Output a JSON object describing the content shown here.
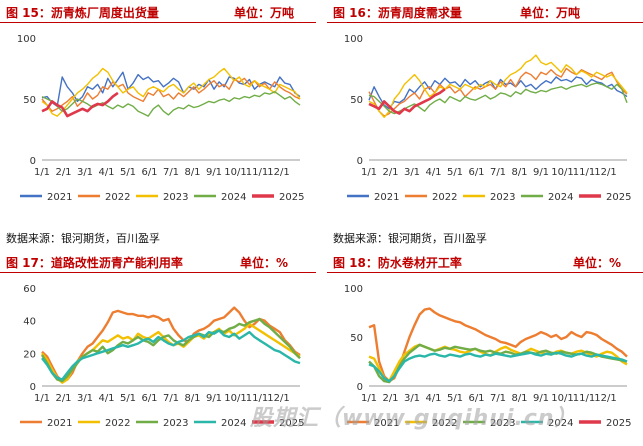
{
  "colors": {
    "2021": "#4472c4",
    "2022": "#ed7d31",
    "2023": "#f2c000",
    "2024": "#70ad47",
    "2025": "#e0384b",
    "2024_alt": "#2ab7a9",
    "title": "#c00000"
  },
  "source_text": "数据来源：银河期货，百川盈孚",
  "watermark": "股期汇（www.guqihui.cn）",
  "chart_data": [
    {
      "type": "line",
      "title": "图 15：沥青炼厂周度出货量",
      "unit": "单位：万吨",
      "x_ticks": [
        "1/1",
        "2/1",
        "3/1",
        "4/1",
        "5/1",
        "6/1",
        "7/1",
        "8/1",
        "9/1",
        "10/1",
        "11/1",
        "12/1"
      ],
      "y_ticks": [
        0,
        50,
        100
      ],
      "ylim": [
        0,
        100
      ],
      "legend": [
        "2021",
        "2022",
        "2023",
        "2024",
        "2025"
      ],
      "series": [
        {
          "name": "2021",
          "color": "#4472c4",
          "values": [
            51,
            52,
            47,
            44,
            68,
            60,
            55,
            48,
            52,
            60,
            58,
            62,
            55,
            67,
            60,
            66,
            72,
            58,
            63,
            70,
            66,
            68,
            64,
            65,
            60,
            63,
            67,
            64,
            55,
            60,
            58,
            62,
            60,
            66,
            58,
            64,
            60,
            68,
            67,
            63,
            62,
            66,
            58,
            62,
            64,
            62,
            60,
            68,
            63,
            62,
            55,
            52
          ]
        },
        {
          "name": "2022",
          "color": "#ed7d31",
          "values": [
            50,
            45,
            40,
            42,
            45,
            48,
            52,
            44,
            48,
            55,
            50,
            53,
            60,
            58,
            64,
            60,
            62,
            55,
            52,
            50,
            48,
            55,
            53,
            58,
            52,
            54,
            50,
            55,
            52,
            56,
            60,
            55,
            58,
            62,
            65,
            60,
            62,
            58,
            66,
            64,
            67,
            62,
            65,
            60,
            63,
            58,
            64,
            60,
            57,
            55,
            52,
            50
          ]
        },
        {
          "name": "2023",
          "color": "#f2c000",
          "values": [
            48,
            45,
            38,
            36,
            40,
            45,
            50,
            55,
            58,
            62,
            67,
            70,
            75,
            72,
            65,
            60,
            55,
            58,
            60,
            55,
            52,
            58,
            60,
            58,
            56,
            60,
            62,
            58,
            55,
            60,
            63,
            58,
            62,
            66,
            68,
            72,
            75,
            70,
            65,
            68,
            62,
            60,
            65,
            62,
            60,
            58,
            55,
            62,
            60,
            58,
            56,
            50
          ]
        },
        {
          "name": "2024",
          "color": "#70ad47",
          "values": [
            52,
            50,
            48,
            44,
            40,
            42,
            46,
            50,
            48,
            46,
            43,
            45,
            47,
            44,
            42,
            45,
            43,
            46,
            44,
            40,
            38,
            36,
            42,
            45,
            40,
            37,
            41,
            43,
            42,
            45,
            43,
            44,
            46,
            48,
            47,
            49,
            50,
            48,
            51,
            50,
            52,
            51,
            53,
            52,
            55,
            54,
            56,
            53,
            50,
            52,
            48,
            45
          ]
        },
        {
          "name": "2025",
          "color": "#e0384b",
          "values": [
            40,
            42,
            48,
            45,
            43,
            36,
            38,
            40,
            42,
            40,
            44,
            46,
            45,
            48,
            52,
            55
          ]
        }
      ]
    },
    {
      "type": "line",
      "title": "图 16：沥青周度需求量",
      "unit": "单位：万吨",
      "x_ticks": [
        "1/1",
        "2/1",
        "3/1",
        "4/1",
        "5/1",
        "6/1",
        "7/1",
        "8/1",
        "9/1",
        "10/1",
        "11/1",
        "12/1"
      ],
      "y_ticks": [
        0,
        50,
        100
      ],
      "ylim": [
        0,
        100
      ],
      "legend": [
        "2021",
        "2022",
        "2023",
        "2024",
        "2025"
      ],
      "series": [
        {
          "name": "2021",
          "color": "#4472c4",
          "values": [
            49,
            60,
            52,
            45,
            42,
            48,
            47,
            50,
            58,
            55,
            60,
            64,
            58,
            65,
            62,
            67,
            63,
            64,
            60,
            66,
            62,
            65,
            60,
            63,
            65,
            58,
            66,
            62,
            63,
            60,
            65,
            60,
            62,
            58,
            62,
            65,
            63,
            68,
            65,
            66,
            64,
            68,
            67,
            62,
            66,
            64,
            63,
            60,
            62,
            57,
            55,
            52
          ]
        },
        {
          "name": "2022",
          "color": "#ed7d31",
          "values": [
            56,
            48,
            40,
            36,
            38,
            42,
            46,
            48,
            52,
            55,
            50,
            58,
            60,
            55,
            62,
            58,
            60,
            55,
            58,
            52,
            56,
            60,
            58,
            60,
            62,
            58,
            64,
            60,
            66,
            60,
            68,
            72,
            70,
            66,
            72,
            70,
            74,
            70,
            68,
            75,
            72,
            70,
            74,
            72,
            70,
            68,
            66,
            70,
            72,
            64,
            58,
            54
          ]
        },
        {
          "name": "2023",
          "color": "#f2c000",
          "values": [
            48,
            46,
            40,
            35,
            40,
            50,
            55,
            62,
            66,
            70,
            65,
            58,
            52,
            55,
            60,
            58,
            62,
            60,
            58,
            62,
            60,
            58,
            62,
            60,
            65,
            62,
            60,
            66,
            70,
            72,
            75,
            80,
            82,
            86,
            80,
            78,
            80,
            76,
            72,
            78,
            75,
            70,
            73,
            71,
            68,
            72,
            70,
            68,
            70,
            65,
            60,
            55
          ]
        },
        {
          "name": "2024",
          "color": "#70ad47",
          "values": [
            53,
            52,
            48,
            44,
            40,
            38,
            40,
            42,
            44,
            46,
            43,
            40,
            45,
            48,
            50,
            47,
            52,
            50,
            48,
            52,
            50,
            49,
            51,
            53,
            50,
            52,
            55,
            54,
            52,
            56,
            54,
            58,
            56,
            55,
            57,
            56,
            58,
            59,
            60,
            58,
            60,
            61,
            62,
            60,
            62,
            63,
            62,
            60,
            58,
            62,
            58,
            47
          ]
        },
        {
          "name": "2025",
          "color": "#e0384b",
          "values": [
            46,
            44,
            42,
            48,
            44,
            40,
            38,
            42,
            40,
            44,
            46,
            48,
            50,
            53,
            55,
            58
          ]
        }
      ]
    },
    {
      "type": "line",
      "title": "图 17：道路改性沥青产能利用率",
      "unit": "单位：%",
      "x_ticks": [
        "1/1",
        "2/1",
        "3/1",
        "4/1",
        "5/1",
        "6/1",
        "7/1",
        "8/1",
        "9/1",
        "10/1",
        "11/1",
        "12/1"
      ],
      "y_ticks": [
        0,
        20,
        40,
        60
      ],
      "ylim": [
        0,
        60
      ],
      "legend": [
        "2021",
        "2022",
        "2023",
        "2024",
        "2025"
      ],
      "series": [
        {
          "name": "2021",
          "color": "#ed7d31",
          "values": [
            21,
            18,
            12,
            6,
            3,
            4,
            8,
            15,
            20,
            24,
            26,
            30,
            34,
            39,
            45,
            46,
            45,
            44,
            44,
            43,
            43,
            42,
            43,
            42,
            40,
            41,
            35,
            31,
            28,
            27,
            32,
            34,
            35,
            37,
            40,
            41,
            42,
            45,
            48,
            45,
            40,
            36,
            38,
            41,
            40,
            37,
            35,
            33,
            28,
            25,
            21,
            19
          ]
        },
        {
          "name": "2022",
          "color": "#f2c000",
          "values": [
            20,
            16,
            10,
            5,
            2,
            4,
            10,
            15,
            18,
            20,
            22,
            25,
            28,
            27,
            29,
            31,
            29,
            30,
            28,
            32,
            30,
            29,
            31,
            33,
            30,
            27,
            25,
            26,
            24,
            27,
            30,
            31,
            29,
            32,
            33,
            35,
            32,
            34,
            31,
            33,
            35,
            38,
            36,
            34,
            32,
            30,
            28,
            26,
            24,
            22,
            20,
            18
          ]
        },
        {
          "name": "2023",
          "color": "#70ad47",
          "values": [
            19,
            14,
            8,
            4,
            3,
            6,
            10,
            14,
            18,
            20,
            22,
            21,
            24,
            20,
            22,
            25,
            27,
            26,
            28,
            30,
            28,
            27,
            25,
            28,
            30,
            31,
            28,
            26,
            25,
            28,
            30,
            32,
            31,
            30,
            33,
            34,
            33,
            35,
            36,
            38,
            37,
            39,
            40,
            41,
            38,
            36,
            33,
            30,
            27,
            24,
            20,
            17
          ]
        },
        {
          "name": "2024",
          "color": "#2ab7a9",
          "values": [
            17,
            13,
            8,
            5,
            4,
            8,
            12,
            15,
            17,
            18,
            19,
            20,
            21,
            22,
            23,
            24,
            25,
            24,
            25,
            26,
            28,
            29,
            27,
            30,
            28,
            26,
            25,
            27,
            28,
            30,
            31,
            32,
            30,
            33,
            32,
            34,
            31,
            30,
            32,
            29,
            31,
            33,
            30,
            28,
            26,
            24,
            22,
            21,
            19,
            17,
            15,
            14
          ]
        },
        {
          "name": "2025",
          "color": "#e0384b",
          "values": []
        }
      ]
    },
    {
      "type": "line",
      "title": "图 18：防水卷材开工率",
      "unit": "单位：%",
      "x_ticks": [
        "1/1",
        "2/1",
        "3/1",
        "4/1",
        "5/1",
        "6/1",
        "7/1",
        "8/1",
        "9/1",
        "10/1",
        "11/1",
        "12/1"
      ],
      "y_ticks": [
        0,
        50,
        100
      ],
      "ylim": [
        0,
        100
      ],
      "legend": [
        "2021",
        "2022",
        "2023",
        "2024",
        "2025"
      ],
      "series": [
        {
          "name": "2021",
          "color": "#ed7d31",
          "values": [
            60,
            62,
            25,
            10,
            5,
            8,
            20,
            35,
            50,
            62,
            73,
            78,
            79,
            75,
            72,
            70,
            68,
            66,
            65,
            62,
            60,
            58,
            55,
            52,
            50,
            48,
            45,
            44,
            42,
            40,
            45,
            48,
            50,
            52,
            55,
            53,
            50,
            52,
            48,
            50,
            55,
            52,
            50,
            55,
            54,
            52,
            48,
            45,
            42,
            38,
            35,
            30
          ]
        },
        {
          "name": "2022",
          "color": "#f2c000",
          "values": [
            30,
            28,
            18,
            8,
            5,
            15,
            25,
            32,
            36,
            40,
            42,
            40,
            38,
            36,
            38,
            40,
            38,
            37,
            35,
            34,
            36,
            38,
            35,
            33,
            31,
            35,
            38,
            40,
            37,
            35,
            33,
            35,
            38,
            36,
            34,
            33,
            32,
            35,
            36,
            34,
            33,
            35,
            36,
            34,
            32,
            30,
            33,
            35,
            34,
            30,
            25,
            22
          ]
        },
        {
          "name": "2023",
          "color": "#70ad47",
          "values": [
            25,
            20,
            10,
            5,
            4,
            10,
            20,
            28,
            34,
            38,
            42,
            40,
            38,
            36,
            37,
            39,
            38,
            40,
            39,
            38,
            37,
            38,
            36,
            35,
            36,
            34,
            33,
            35,
            34,
            32,
            33,
            35,
            34,
            33,
            35,
            36,
            34,
            33,
            35,
            34,
            33,
            32,
            33,
            35,
            34,
            32,
            30,
            29,
            28,
            27,
            26,
            25
          ]
        },
        {
          "name": "2024",
          "color": "#2ab7a9",
          "values": [
            22,
            20,
            15,
            8,
            5,
            10,
            18,
            25,
            28,
            30,
            31,
            30,
            32,
            33,
            31,
            30,
            32,
            31,
            30,
            32,
            33,
            31,
            30,
            32,
            31,
            33,
            32,
            31,
            30,
            31,
            32,
            33,
            34,
            32,
            31,
            33,
            32,
            34,
            33,
            31,
            30,
            32,
            33,
            31,
            30,
            32,
            31,
            30,
            29,
            28,
            27,
            25
          ]
        },
        {
          "name": "2025",
          "color": "#e0384b",
          "values": []
        }
      ]
    }
  ]
}
